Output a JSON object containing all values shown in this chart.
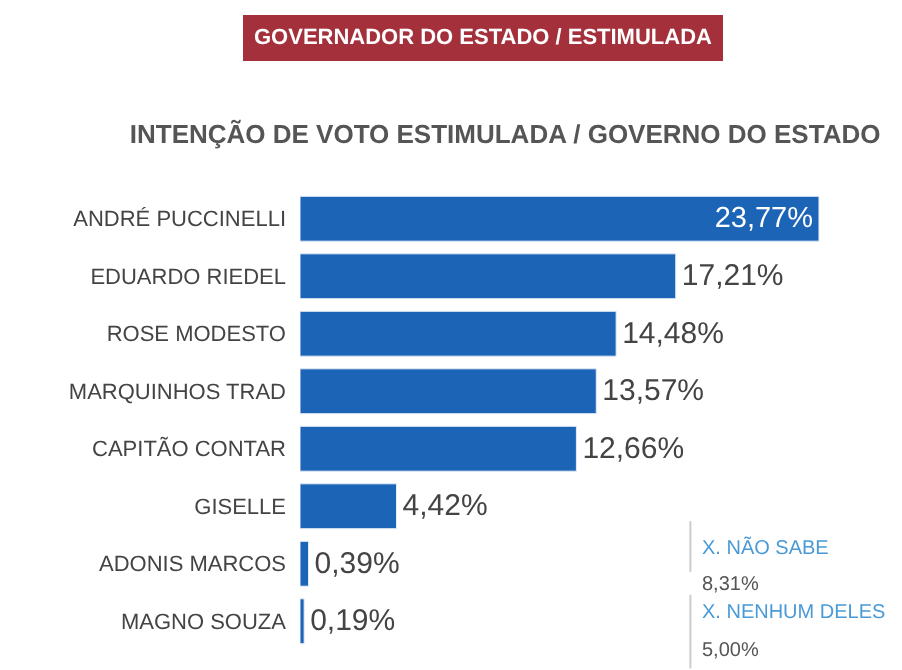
{
  "chart_data": {
    "type": "bar",
    "orientation": "horizontal",
    "subtitle": "GOVERNADOR DO ESTADO / ESTIMULADA",
    "title": "INTENÇÃO DE VOTO ESTIMULADA / GOVERNO DO ESTADO",
    "categories": [
      "ANDRÉ PUCCINELLI",
      "EDUARDO RIEDEL",
      "ROSE MODESTO",
      "MARQUINHOS TRAD",
      "CAPITÃO CONTAR",
      "GISELLE",
      "ADONIS MARCOS",
      "MAGNO SOUZA"
    ],
    "values": [
      23.77,
      17.21,
      14.48,
      13.57,
      12.66,
      4.42,
      0.39,
      0.19
    ],
    "value_labels": [
      "23,77%",
      "17,21%",
      "14,48%",
      "13,57%",
      "12,66%",
      "4,42%",
      "0,39%",
      "0,19%"
    ],
    "color": "#1c64b6",
    "xlim": [
      0,
      24
    ],
    "tick_labels": false,
    "legend": false,
    "annotations": [
      "X. NÃO SABE",
      "8,31%",
      "X. NENHUM DELES",
      "5,00%"
    ]
  }
}
